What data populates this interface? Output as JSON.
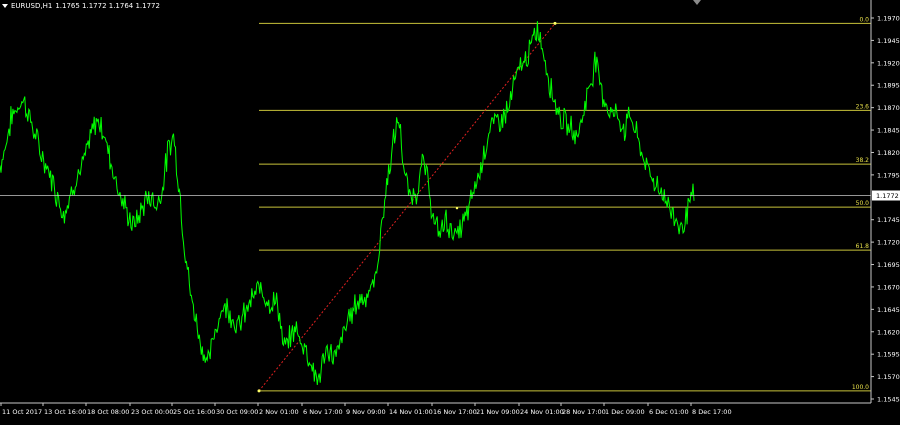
{
  "header": {
    "symbol": "EURUSD,H1",
    "ohlc": "1.1765 1.1772 1.1764 1.1772"
  },
  "chart_data": {
    "type": "line",
    "symbol": "EURUSD,H1",
    "ylim": [
      1.1545,
      1.1985
    ],
    "current_price": "1.1772",
    "price_ticks": [
      "1.1970",
      "1.1945",
      "1.1920",
      "1.1895",
      "1.1870",
      "1.1845",
      "1.1820",
      "1.1795",
      "1.1772",
      "1.1745",
      "1.1720",
      "1.1695",
      "1.1670",
      "1.1645",
      "1.1620",
      "1.1595",
      "1.1570",
      "1.1545"
    ],
    "time_labels": [
      "11 Oct 2017",
      "13 Oct 16:00",
      "18 Oct 08:00",
      "23 Oct 00:00",
      "25 Oct 16:00",
      "30 Oct 09:00",
      "2 Nov 01:00",
      "6 Nov 17:00",
      "9 Nov 09:00",
      "14 Nov 01:00",
      "16 Nov 17:00",
      "21 Nov 09:00",
      "24 Nov 01:00",
      "28 Nov 17:00",
      "1 Dec 09:00",
      "6 Dec 01:00",
      "8 Dec 17:00"
    ],
    "fibonacci": {
      "high": 1.1964,
      "low": 1.1554,
      "levels": [
        {
          "label": "0.0",
          "price": 1.1964
        },
        {
          "label": "23.6",
          "price": 1.1867
        },
        {
          "label": "38.2",
          "price": 1.1807
        },
        {
          "label": "50.0",
          "price": 1.1759
        },
        {
          "label": "61.8",
          "price": 1.1711
        },
        {
          "label": "100.0",
          "price": 1.1554
        }
      ]
    },
    "series": [
      {
        "values": [
          1.1805,
          1.1828,
          1.186,
          1.187,
          1.188,
          1.1862,
          1.184,
          1.182,
          1.1805,
          1.179,
          1.177,
          1.1752,
          1.1768,
          1.179,
          1.18,
          1.182,
          1.1845,
          1.1858,
          1.184,
          1.1815,
          1.179,
          1.1768,
          1.1752,
          1.1738,
          1.1748,
          1.1765,
          1.1772,
          1.176,
          1.1778,
          1.182,
          1.184,
          1.178,
          1.171,
          1.166,
          1.163,
          1.16,
          1.1585,
          1.1615,
          1.164,
          1.165,
          1.164,
          1.1625,
          1.1635,
          1.165,
          1.166,
          1.167,
          1.166,
          1.165,
          1.1655,
          1.16,
          1.161,
          1.1625,
          1.161,
          1.16,
          1.158,
          1.1565,
          1.159,
          1.16,
          1.159,
          1.161,
          1.163,
          1.1645,
          1.1655,
          1.166,
          1.1665,
          1.168,
          1.174,
          1.179,
          1.183,
          1.186,
          1.179,
          1.177,
          1.1775,
          1.181,
          1.179,
          1.174,
          1.173,
          1.1745,
          1.1735,
          1.1725,
          1.174,
          1.1755,
          1.178,
          1.18,
          1.183,
          1.185,
          1.1855,
          1.186,
          1.187,
          1.19,
          1.1915,
          1.1925,
          1.194,
          1.196,
          1.193,
          1.19,
          1.1875,
          1.186,
          1.185,
          1.1845,
          1.184,
          1.187,
          1.1895,
          1.1925,
          1.189,
          1.187,
          1.1865,
          1.1858,
          1.1845,
          1.1865,
          1.184,
          1.182,
          1.18,
          1.179,
          1.178,
          1.177,
          1.1755,
          1.1745,
          1.1735,
          1.176,
          1.1772
        ]
      }
    ]
  }
}
